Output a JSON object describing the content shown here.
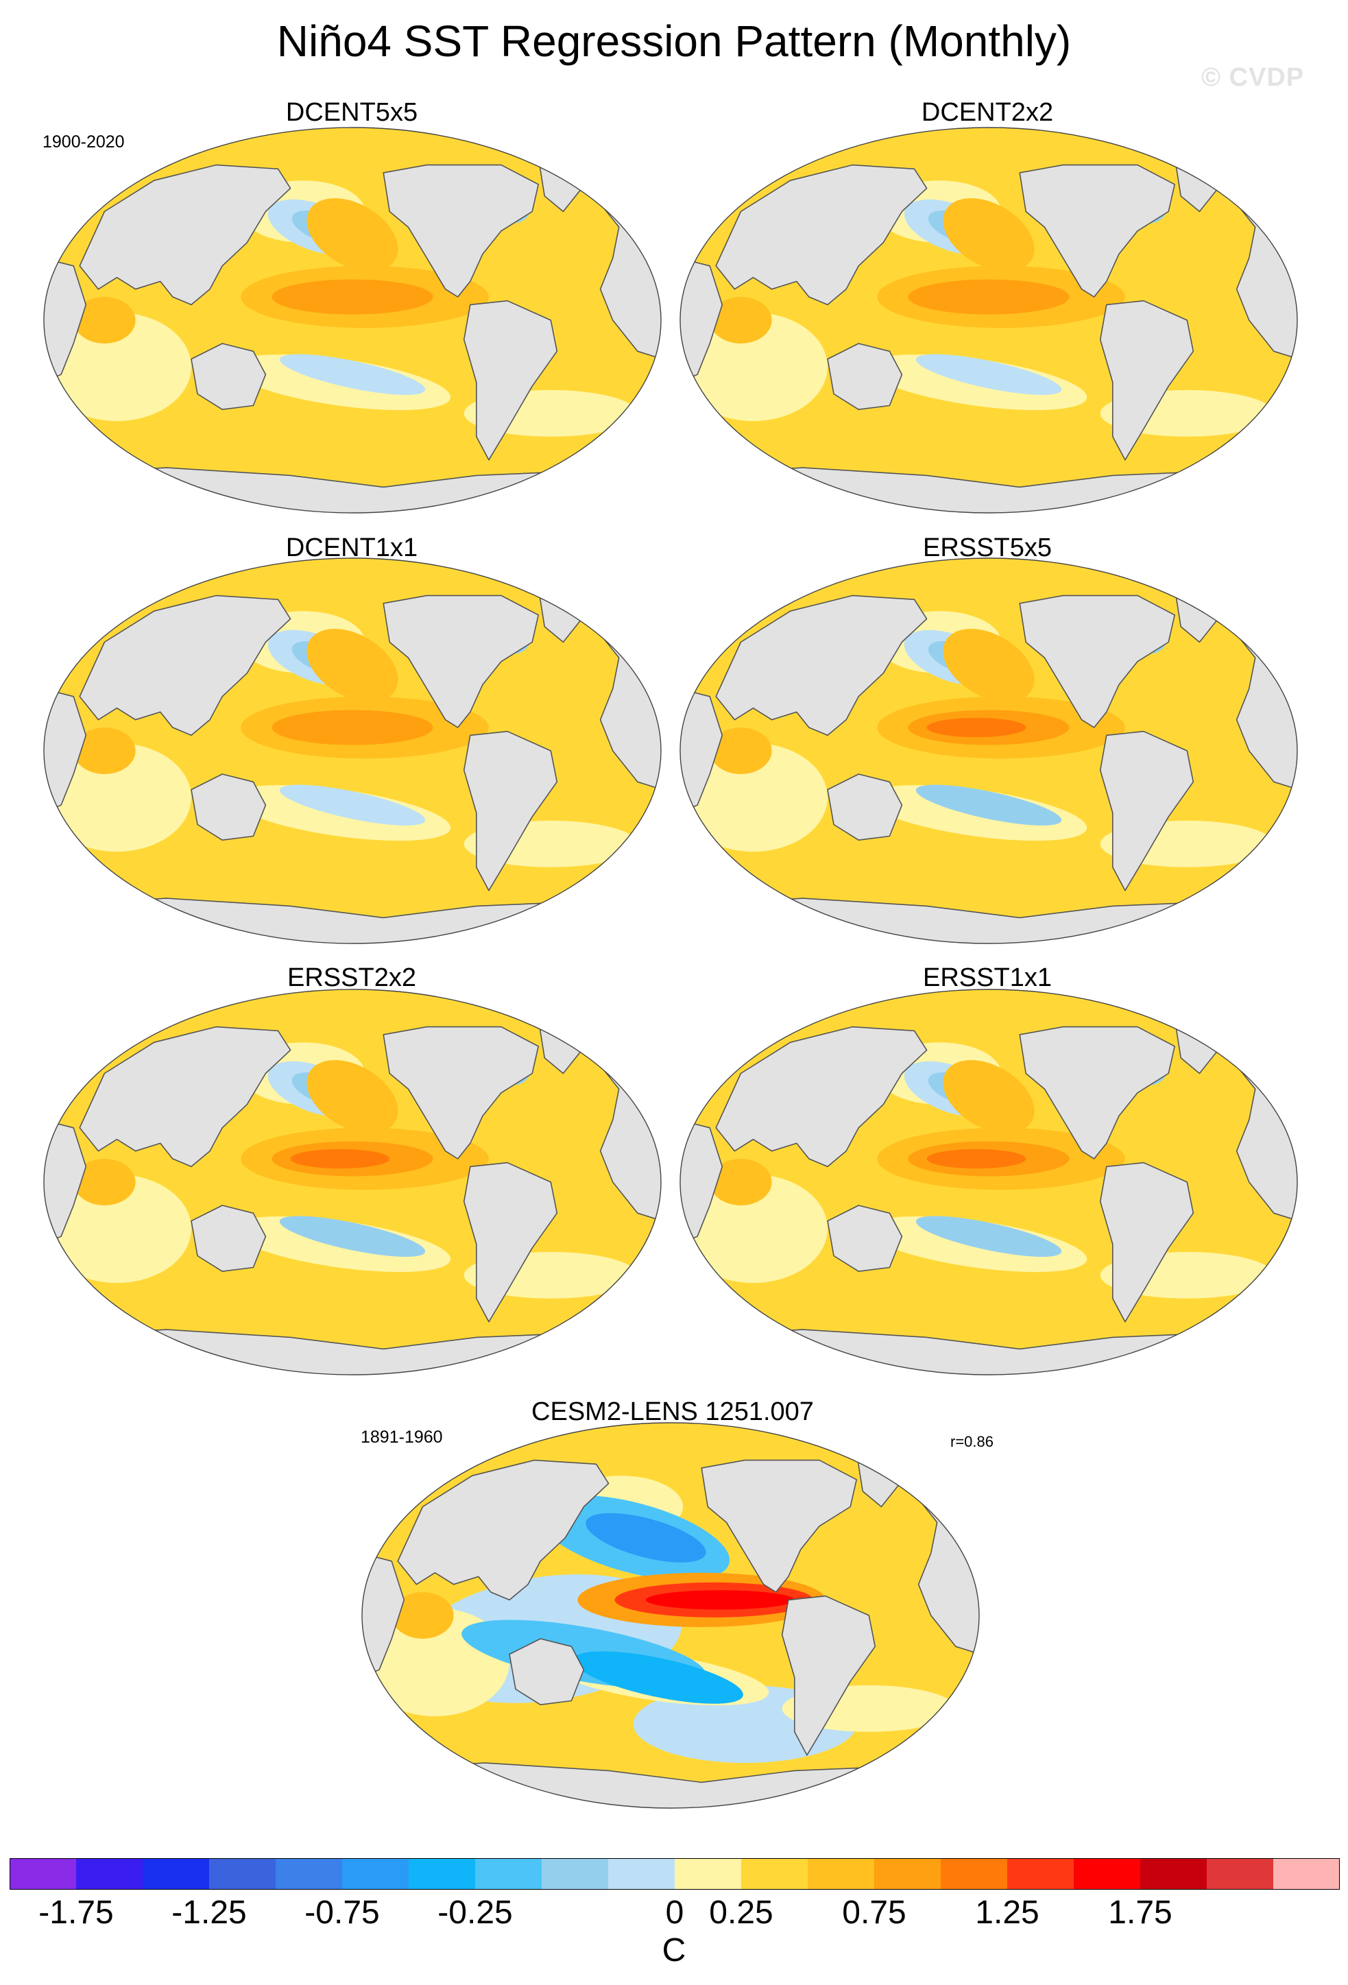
{
  "title": "Niño4 SST Regression Pattern (Monthly)",
  "watermark": "© CVDP",
  "obs_period": "1900-2020",
  "model_period": "1891-1960",
  "panels": [
    {
      "name": "DCENT5x5"
    },
    {
      "name": "DCENT2x2"
    },
    {
      "name": "DCENT1x1"
    },
    {
      "name": "ERSST5x5"
    },
    {
      "name": "ERSST2x2"
    },
    {
      "name": "ERSST1x1"
    },
    {
      "name": "CESM2-LENS 1251.007",
      "stat": "r=0.86"
    }
  ],
  "colorbar": {
    "units": "C",
    "colors": [
      "#8a2be8",
      "#3a1df0",
      "#1a30f0",
      "#3b63de",
      "#3c80ea",
      "#2a9bf6",
      "#10b4f8",
      "#4cc4f8",
      "#95cfee",
      "#bde0f6",
      "#fff5a6",
      "#ffd838",
      "#ffc020",
      "#ffa010",
      "#ff7a08",
      "#ff3a12",
      "#ff0000",
      "#c8000e",
      "#e03838",
      "#ffb4b4"
    ],
    "tick_labels": [
      "-1.75",
      "-1.25",
      "-0.75",
      "-0.25",
      "0",
      "0.25",
      "0.75",
      "1.25",
      "1.75"
    ]
  },
  "colors": {
    "land": "#e2e2e2",
    "coast": "#555555"
  }
}
